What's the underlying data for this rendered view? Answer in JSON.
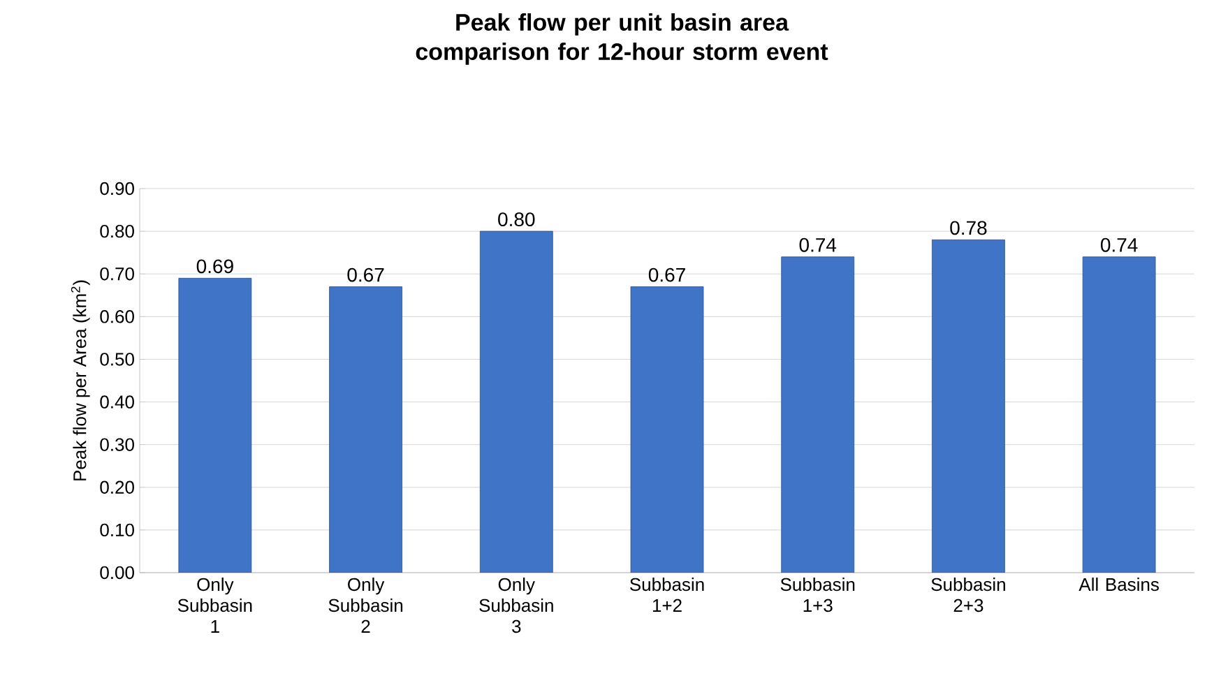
{
  "chart_data": {
    "type": "bar",
    "title": "Peak flow per unit basin area comparison for 12-hour storm event",
    "ylabel": "Peak flow per Area (km$^{2}$)",
    "categories": [
      "Only Subbasin 1",
      "Only Subbasin 2",
      "Only Subbasin 3",
      "Subbasin 1+2",
      "Subbasin 1+3",
      "Subbasin 2+3",
      "All Basins"
    ],
    "values": [
      0.69,
      0.67,
      0.8,
      0.67,
      0.74,
      0.78,
      0.74
    ],
    "value_labels": [
      "0.69",
      "0.67",
      "0.80",
      "0.67",
      "0.74",
      "0.78",
      "0.74"
    ],
    "color": "#3f74c6",
    "ylim": [
      0,
      0.9
    ],
    "yticks": [
      {
        "value": 0,
        "label": "0.00"
      },
      {
        "value": 0.1,
        "label": "0.10"
      },
      {
        "value": 0.2,
        "label": "0.20"
      },
      {
        "value": 0.3,
        "label": "0.30"
      },
      {
        "value": 0.4,
        "label": "0.40"
      },
      {
        "value": 0.5,
        "label": "0.50"
      },
      {
        "value": 0.6,
        "label": "0.60"
      },
      {
        "value": 0.7,
        "label": "0.70"
      },
      {
        "value": 0.8,
        "label": "0.80"
      },
      {
        "value": 0.9,
        "label": "0.90"
      }
    ],
    "grid": "y"
  }
}
